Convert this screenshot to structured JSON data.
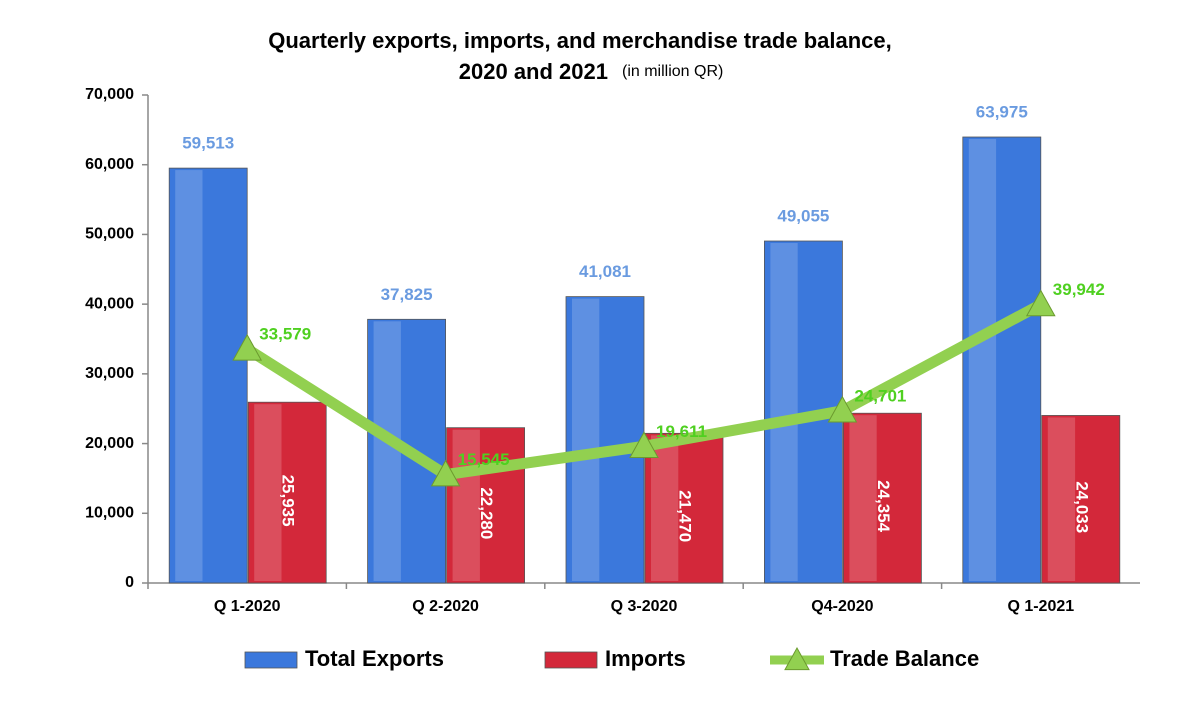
{
  "chart_data": {
    "type": "bar-line",
    "title": [
      "Quarterly exports, imports, and merchandise trade balance,",
      "2020 and 2021"
    ],
    "subtitle": "(in million QR)",
    "categories": [
      "Q 1-2020",
      "Q 2-2020",
      "Q 3-2020",
      "Q4-2020",
      "Q 1-2021"
    ],
    "series": [
      {
        "name": "Total Exports",
        "type": "bar",
        "color": "#3b78dc",
        "label_color": "#6a9be0",
        "values": [
          59513,
          37825,
          41081,
          49055,
          63975
        ],
        "value_labels": [
          "59,513",
          "37,825",
          "41,081",
          "49,055",
          "63,975"
        ]
      },
      {
        "name": "Imports",
        "type": "bar",
        "color": "#d3283a",
        "label_color": "#ffffff",
        "values": [
          25935,
          22280,
          21470,
          24354,
          24033
        ],
        "value_labels": [
          "25,935",
          "22,280",
          "21,470",
          "24,354",
          "24,033"
        ]
      },
      {
        "name": "Trade Balance",
        "type": "line",
        "color": "#92d050",
        "label_color": "#4fd020",
        "values": [
          33579,
          15545,
          19611,
          24701,
          39942
        ],
        "value_labels": [
          "33,579",
          "15,545",
          "19,611",
          "24,701",
          "39,942"
        ]
      }
    ],
    "ylim": [
      0,
      70000
    ],
    "yticks": [
      0,
      {
        "value": 10000,
        "label": "10,000"
      },
      {
        "value": 20000,
        "label": "20,000"
      },
      {
        "value": 30000,
        "label": "30,000"
      },
      {
        "value": 40000,
        "label": "40,000"
      },
      {
        "value": 50000,
        "label": "50,000"
      },
      {
        "value": 60000,
        "label": "60,000"
      },
      {
        "value": 70000,
        "label": "70,000"
      }
    ],
    "grid": false,
    "legend": "bottom"
  }
}
